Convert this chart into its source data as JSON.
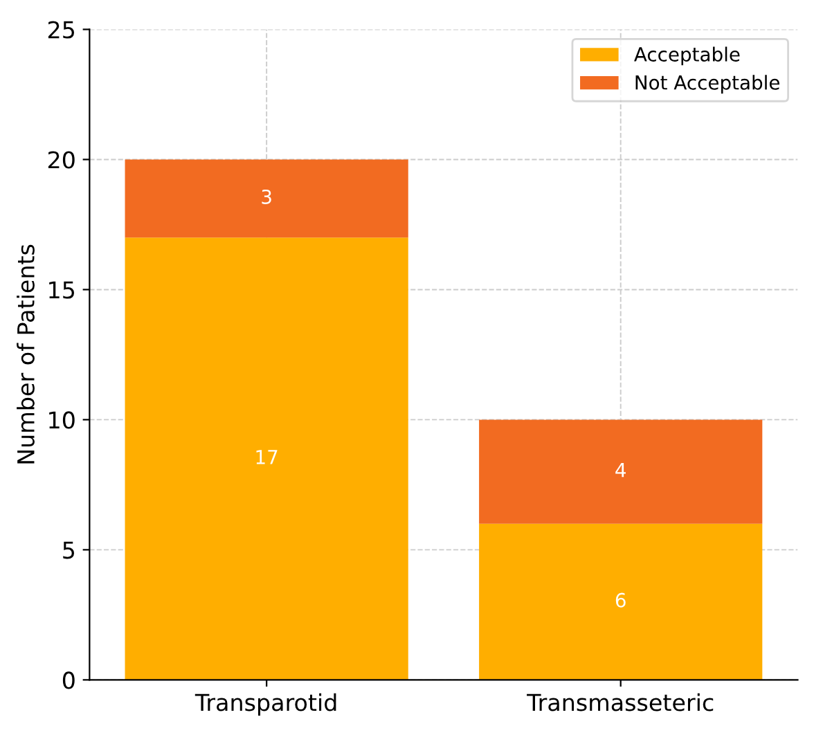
{
  "chart_data": {
    "type": "bar",
    "stacked": true,
    "ylabel": "Number of Patients",
    "categories": [
      "Transparotid",
      "Transmasseteric"
    ],
    "series": [
      {
        "name": "Acceptable",
        "color": "#ffae00",
        "values": [
          17,
          6
        ]
      },
      {
        "name": "Not Acceptable",
        "color": "#f26b21",
        "values": [
          3,
          4
        ]
      }
    ],
    "ylim": [
      0,
      25
    ],
    "yticks": [
      0,
      5,
      10,
      15,
      20,
      25
    ],
    "grid": true,
    "data_labels": true,
    "legend": "top right"
  }
}
